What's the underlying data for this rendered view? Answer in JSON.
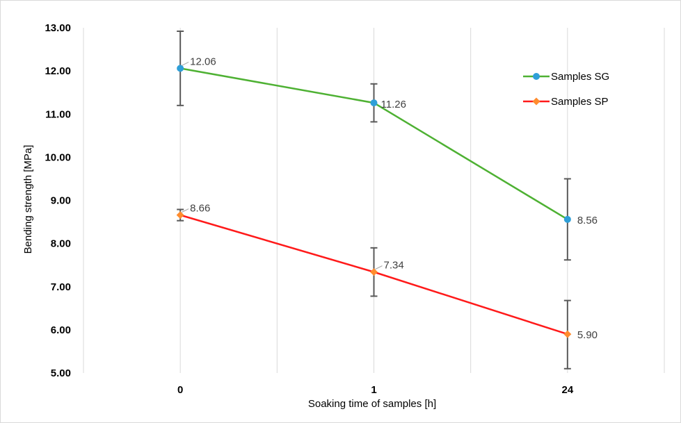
{
  "chart_data": {
    "type": "line",
    "title": "",
    "xlabel": "Soaking time of samples [h]",
    "ylabel": "Bending strength [MPa]",
    "categories": [
      "0",
      "1",
      "24"
    ],
    "ylim": [
      5,
      13
    ],
    "yticks": [
      "5.00",
      "6.00",
      "7.00",
      "8.00",
      "9.00",
      "10.00",
      "11.00",
      "12.00",
      "13.00"
    ],
    "grid": "vertical",
    "legend": "right",
    "series": [
      {
        "name": "Samples SG",
        "values": [
          12.06,
          11.26,
          8.56
        ],
        "labels": [
          "12.06",
          "11.26",
          "8.56"
        ],
        "error_low": [
          11.2,
          10.82,
          7.62
        ],
        "error_high": [
          12.92,
          11.7,
          9.5
        ],
        "line_color": "#4eb133",
        "marker_color": "#2e9fd8",
        "marker": "circle"
      },
      {
        "name": "Samples SP",
        "values": [
          8.66,
          7.34,
          5.9
        ],
        "labels": [
          "8.66",
          "7.34",
          "5.90"
        ],
        "error_low": [
          8.53,
          6.78,
          5.1
        ],
        "error_high": [
          8.79,
          7.9,
          6.68
        ],
        "line_color": "#ff1a1a",
        "marker_color": "#ff8c2e",
        "marker": "diamond"
      }
    ]
  }
}
